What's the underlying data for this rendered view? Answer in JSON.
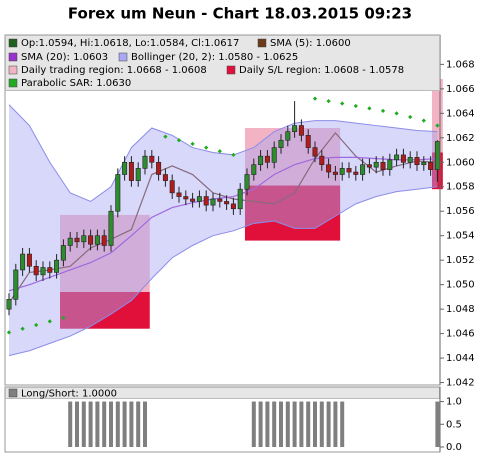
{
  "chart_data": {
    "type": "candlestick",
    "title": "Forex um Neun - Chart 18.03.2015 09:23",
    "ylim": [
      1.0418,
      1.0704
    ],
    "yticks": [
      1.042,
      1.044,
      1.046,
      1.048,
      {
        "value": 1.05,
        "label": "1.050"
      },
      1.052,
      1.054,
      1.056,
      1.058,
      {
        "value": 1.06,
        "label": "1.060"
      },
      1.062,
      1.064,
      1.066,
      1.068
    ],
    "candles": {
      "name": "Op:1.0594, Hi:1.0618, Lo:1.0584, Cl:1.0617",
      "color": "#1f5f1f",
      "up_color": "#2e8b2e",
      "down_color": "#b01c1c",
      "open": [
        1.048,
        1.0488,
        1.0512,
        1.0525,
        1.0515,
        1.0508,
        1.0514,
        1.051,
        1.052,
        1.0532,
        1.0538,
        1.0535,
        1.054,
        1.0533,
        1.054,
        1.0532,
        1.056,
        1.059,
        1.06,
        1.0585,
        1.0595,
        1.0605,
        1.06,
        1.059,
        1.0585,
        1.0575,
        1.0572,
        1.057,
        1.0568,
        1.0572,
        1.0565,
        1.057,
        1.0568,
        1.0566,
        1.0562,
        1.0578,
        1.059,
        1.0598,
        1.0605,
        1.06,
        1.0612,
        1.0618,
        1.0625,
        1.063,
        1.0622,
        1.0612,
        1.0605,
        1.0598,
        1.0592,
        1.059,
        1.0595,
        1.0592,
        1.059,
        1.0598,
        1.0596,
        1.06,
        1.0594,
        1.0602,
        1.0606,
        1.06,
        1.0604,
        1.0598,
        1.06,
        1.0594
      ],
      "high": [
        1.0493,
        1.0517,
        1.053,
        1.053,
        1.052,
        1.0519,
        1.0519,
        1.0525,
        1.0537,
        1.0543,
        1.0543,
        1.0545,
        1.0545,
        1.0545,
        1.0545,
        1.0565,
        1.0595,
        1.0605,
        1.0605,
        1.06,
        1.061,
        1.061,
        1.0605,
        1.0595,
        1.059,
        1.058,
        1.0577,
        1.0575,
        1.0577,
        1.0577,
        1.0575,
        1.0575,
        1.0573,
        1.0571,
        1.0583,
        1.0595,
        1.0603,
        1.061,
        1.061,
        1.0617,
        1.0623,
        1.063,
        1.065,
        1.0635,
        1.0627,
        1.0617,
        1.061,
        1.0603,
        1.0597,
        1.06,
        1.06,
        1.0597,
        1.0603,
        1.0603,
        1.0605,
        1.0605,
        1.0607,
        1.0611,
        1.0611,
        1.0609,
        1.0609,
        1.0605,
        1.0605,
        1.0618
      ],
      "low": [
        1.0475,
        1.0483,
        1.0507,
        1.051,
        1.0503,
        1.0503,
        1.0505,
        1.0505,
        1.0515,
        1.0527,
        1.053,
        1.053,
        1.0528,
        1.0528,
        1.0527,
        1.0527,
        1.0555,
        1.0585,
        1.058,
        1.058,
        1.059,
        1.0595,
        1.0585,
        1.058,
        1.057,
        1.0567,
        1.0565,
        1.0563,
        1.0563,
        1.056,
        1.056,
        1.0563,
        1.0561,
        1.0557,
        1.0557,
        1.0573,
        1.0585,
        1.0593,
        1.0595,
        1.0595,
        1.0607,
        1.0613,
        1.062,
        1.0617,
        1.0607,
        1.06,
        1.0593,
        1.0587,
        1.0585,
        1.0585,
        1.0587,
        1.0585,
        1.0585,
        1.0591,
        1.0591,
        1.0589,
        1.0589,
        1.0597,
        1.0595,
        1.0595,
        1.0593,
        1.0593,
        1.0589,
        1.0584
      ],
      "close": [
        1.0488,
        1.0512,
        1.0525,
        1.0515,
        1.0508,
        1.0514,
        1.051,
        1.052,
        1.0532,
        1.0538,
        1.0535,
        1.054,
        1.0533,
        1.054,
        1.0532,
        1.056,
        1.059,
        1.06,
        1.0585,
        1.0595,
        1.0605,
        1.06,
        1.059,
        1.0585,
        1.0575,
        1.0572,
        1.057,
        1.0568,
        1.0572,
        1.0565,
        1.057,
        1.0568,
        1.0566,
        1.0562,
        1.0578,
        1.059,
        1.0598,
        1.0605,
        1.06,
        1.0612,
        1.0618,
        1.0625,
        1.063,
        1.0622,
        1.0612,
        1.0605,
        1.0598,
        1.0592,
        1.059,
        1.0595,
        1.0592,
        1.059,
        1.0598,
        1.0596,
        1.06,
        1.0594,
        1.0602,
        1.0606,
        1.06,
        1.0604,
        1.0598,
        1.06,
        1.0594,
        1.0617
      ]
    },
    "overlays": [
      {
        "type": "line",
        "name": "SMA (5): 1.0600",
        "color": "#6b3a1a",
        "x": [
          0,
          3,
          6,
          9,
          12,
          15,
          18,
          21,
          24,
          27,
          30,
          33,
          36,
          39,
          42,
          45,
          48,
          51,
          54,
          57,
          60,
          63
        ],
        "values": [
          1.0485,
          1.051,
          1.0512,
          1.0515,
          1.053,
          1.0537,
          1.0545,
          1.059,
          1.0597,
          1.059,
          1.0575,
          1.057,
          1.0568,
          1.0566,
          1.0575,
          1.0603,
          1.0624,
          1.0605,
          1.0592,
          1.0597,
          1.0601,
          1.06
        ]
      },
      {
        "type": "line",
        "name": "SMA (20): 1.0603",
        "color": "#9933cc",
        "x": [
          0,
          3,
          6,
          9,
          12,
          15,
          18,
          21,
          24,
          27,
          30,
          33,
          36,
          39,
          42,
          45,
          48,
          51,
          54,
          57,
          60,
          63
        ],
        "values": [
          1.0495,
          1.05,
          1.0506,
          1.0512,
          1.0518,
          1.0526,
          1.054,
          1.0555,
          1.0563,
          1.0567,
          1.057,
          1.0572,
          1.0578,
          1.059,
          1.0598,
          1.0603,
          1.0604,
          1.0604,
          1.0603,
          1.0602,
          1.0602,
          1.0603
        ]
      },
      {
        "type": "band",
        "name": "Bollinger (20, 2): 1.0580 - 1.0625",
        "color": "#a8a8f4",
        "x": [
          0,
          3,
          6,
          9,
          12,
          15,
          18,
          21,
          24,
          27,
          30,
          33,
          36,
          39,
          42,
          45,
          48,
          51,
          54,
          57,
          60,
          63
        ],
        "upper": [
          1.0647,
          1.063,
          1.06,
          1.0575,
          1.0568,
          1.058,
          1.0612,
          1.0628,
          1.0622,
          1.0612,
          1.0608,
          1.0606,
          1.0612,
          1.0625,
          1.0632,
          1.0634,
          1.0634,
          1.0632,
          1.063,
          1.0628,
          1.0626,
          1.0625
        ],
        "lower": [
          1.0442,
          1.0446,
          1.0452,
          1.0458,
          1.0466,
          1.0476,
          1.0487,
          1.0505,
          1.0522,
          1.0532,
          1.054,
          1.0544,
          1.055,
          1.0552,
          1.0546,
          1.0546,
          1.0556,
          1.0566,
          1.0572,
          1.0576,
          1.0578,
          1.058
        ]
      },
      {
        "type": "scatter",
        "name": "Parabolic SAR: 1.0630",
        "color": "#22aa22",
        "x": [
          0,
          2,
          4,
          6,
          8,
          23,
          25,
          27,
          29,
          31,
          33,
          45,
          47,
          49,
          51,
          53,
          55,
          57,
          59,
          61,
          63
        ],
        "values": [
          1.0461,
          1.0464,
          1.0467,
          1.047,
          1.0473,
          1.0621,
          1.0618,
          1.0615,
          1.0612,
          1.0609,
          1.0606,
          1.0652,
          1.065,
          1.0648,
          1.0646,
          1.0644,
          1.0642,
          1.064,
          1.0637,
          1.0634,
          1.063
        ]
      }
    ],
    "regions": [
      {
        "name": "Daily trading region: 1.0668 - 1.0608",
        "color": "#f2b3c4",
        "items": [
          {
            "start": 7.5,
            "end": 20.7,
            "top": 1.0557,
            "bottom": 1.0494
          },
          {
            "start": 34.7,
            "end": 48.7,
            "top": 1.0628,
            "bottom": 1.0581
          },
          {
            "start": 62.2,
            "end": 63.8,
            "top": 1.0668,
            "bottom": 1.0608
          }
        ]
      },
      {
        "name": "Daily S/L region: 1.0608 - 1.0578",
        "color": "#e0103a",
        "items": [
          {
            "start": 7.5,
            "end": 20.7,
            "top": 1.0494,
            "bottom": 1.0464
          },
          {
            "start": 34.7,
            "end": 48.7,
            "top": 1.0581,
            "bottom": 1.0536
          },
          {
            "start": 62.2,
            "end": 63.8,
            "top": 1.0608,
            "bottom": 1.0578
          }
        ]
      }
    ],
    "panel": {
      "type": "bar",
      "name": "Long/Short: 1.0000",
      "color": "#7f7f7f",
      "ylim": [
        -0.11,
        1.32
      ],
      "yticks": [
        {
          "value": 0,
          "label": "0.0"
        },
        {
          "value": 0.5,
          "label": "0.5"
        },
        {
          "value": 1,
          "label": "1.0"
        }
      ],
      "values": [
        0,
        0,
        0,
        0,
        0,
        0,
        0,
        0,
        0,
        1,
        1,
        1,
        1,
        1,
        1,
        1,
        1,
        1,
        1,
        1,
        1,
        0,
        0,
        0,
        0,
        0,
        0,
        0,
        0,
        0,
        0,
        0,
        0,
        0,
        0,
        0,
        1,
        1,
        1,
        1,
        1,
        1,
        1,
        1,
        1,
        1,
        1,
        1,
        1,
        1,
        0,
        0,
        0,
        0,
        0,
        0,
        0,
        0,
        0,
        0,
        0,
        0,
        0,
        1
      ]
    }
  }
}
